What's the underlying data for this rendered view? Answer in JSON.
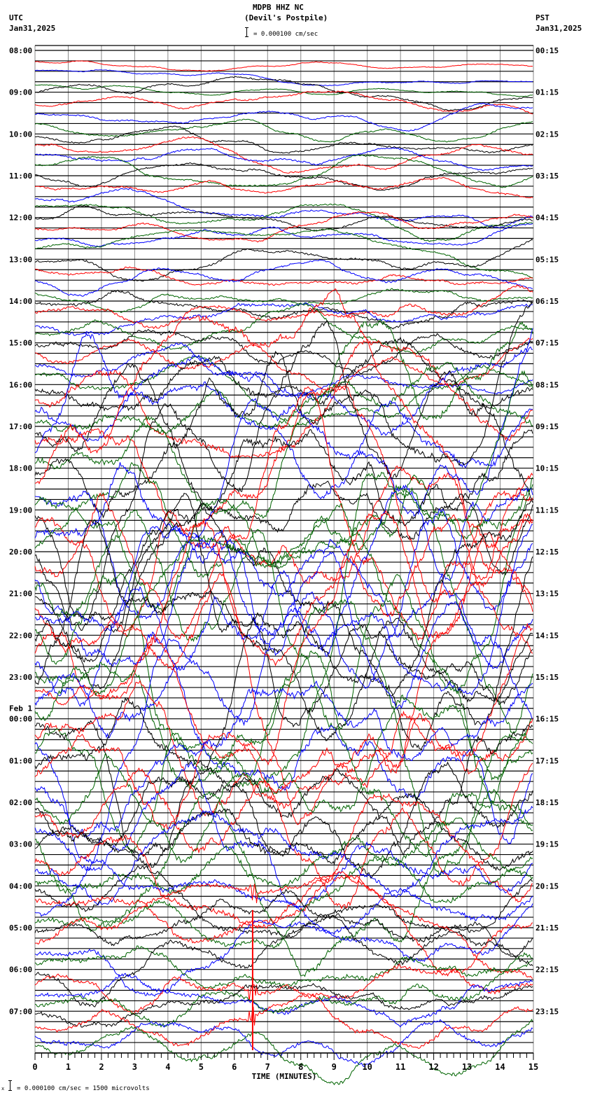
{
  "header": {
    "station": "MDPB HHZ NC",
    "location": "(Devil's Postpile)",
    "scale_text": "= 0.000100 cm/sec",
    "left_tz": "UTC",
    "left_date": "Jan31,2025",
    "right_tz": "PST",
    "right_date": "Jan31,2025"
  },
  "footer": {
    "scale_text": "= 0.000100 cm/sec =    1500 microvolts",
    "scale_prefix": "x"
  },
  "chart_data": {
    "type": "line",
    "title": "MDPB HHZ NC (Devil's Postpile)",
    "subtitle": "= 0.000100 cm/sec",
    "xlabel": "TIME (MINUTES)",
    "ylabel": "",
    "x_ticks": [
      "0",
      "1",
      "2",
      "3",
      "4",
      "5",
      "6",
      "7",
      "8",
      "9",
      "10",
      "11",
      "12",
      "13",
      "14",
      "15"
    ],
    "xlim": [
      0,
      15
    ],
    "minor_ticks_per_minute": 5,
    "traces_per_hour": 4,
    "trace_colors": [
      "#000000",
      "#ff0000",
      "#0000ff",
      "#006400"
    ],
    "left_labels": [
      "08:00",
      "09:00",
      "10:00",
      "11:00",
      "12:00",
      "13:00",
      "14:00",
      "15:00",
      "16:00",
      "17:00",
      "18:00",
      "19:00",
      "20:00",
      "21:00",
      "22:00",
      "23:00",
      "00:00",
      "01:00",
      "02:00",
      "03:00",
      "04:00",
      "05:00",
      "06:00",
      "07:00"
    ],
    "left_date_change": {
      "label": "Feb 1",
      "before_index": 16
    },
    "right_labels": [
      "00:15",
      "01:15",
      "02:15",
      "03:15",
      "04:15",
      "05:15",
      "06:15",
      "07:15",
      "08:15",
      "09:15",
      "10:15",
      "11:15",
      "12:15",
      "13:15",
      "14:15",
      "15:15",
      "16:15",
      "17:15",
      "18:15",
      "19:15",
      "20:15",
      "21:15",
      "22:15",
      "23:15"
    ],
    "grid": {
      "vertical_every_minute": true,
      "horizontal_per_trace": true
    },
    "notable_event": {
      "minute": 6.55,
      "hour_label": "06:00",
      "color": "#ff0000",
      "description": "large spike / local event"
    },
    "noise_profile_by_hour": [
      0.15,
      0.3,
      0.35,
      0.35,
      0.35,
      0.4,
      0.6,
      0.7,
      1.2,
      2.2,
      2.6,
      3.0,
      3.2,
      3.2,
      2.8,
      2.8,
      3.0,
      2.6,
      2.0,
      1.3,
      1.0,
      0.9,
      0.9,
      0.8
    ],
    "blank_first_traces": 1
  }
}
